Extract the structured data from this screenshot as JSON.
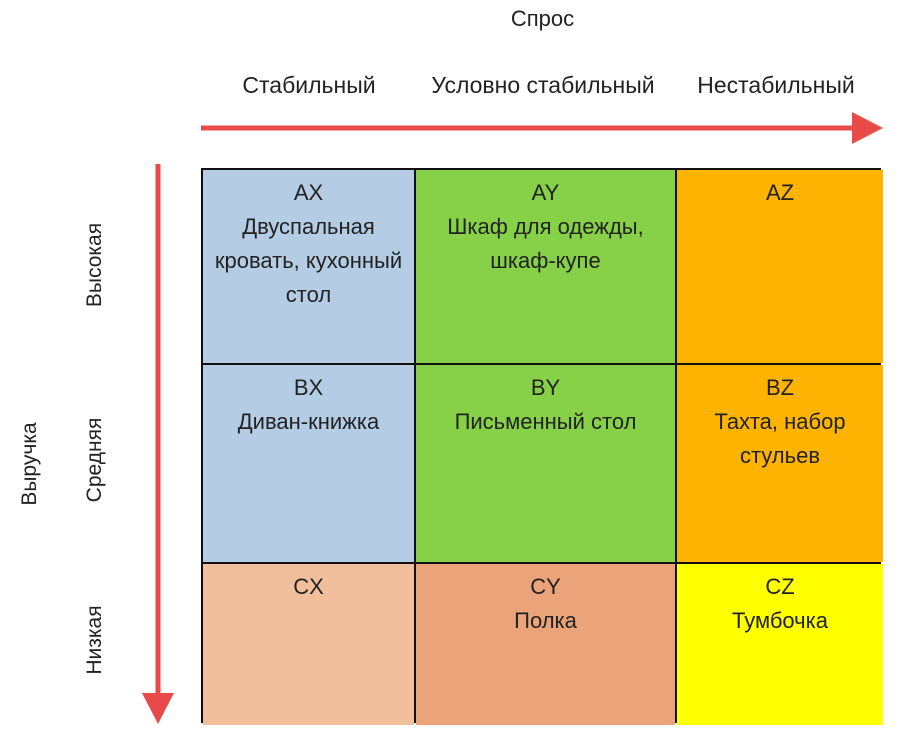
{
  "demand_title": "Спрос",
  "demand_levels": [
    "Стабильный",
    "Условно стабильный",
    "Нестабильный"
  ],
  "revenue_title": "Выручка",
  "revenue_levels": [
    "Высокая",
    "Средняя",
    "Низкая"
  ],
  "colors": {
    "blue": "#b4cde5",
    "green": "#86d147",
    "orange": "#fdb300",
    "peach": "#f2bf9c",
    "salmon": "#eba37a",
    "yellow": "#ffff00",
    "arrow": "#e84a4a"
  },
  "cells": {
    "ax": {
      "code": "AX",
      "items": "Двуспальная кровать, кухонный стол"
    },
    "ay": {
      "code": "AY",
      "items": "Шкаф для одежды, шкаф-купе"
    },
    "az": {
      "code": "AZ",
      "items": ""
    },
    "bx": {
      "code": "BX",
      "items": "Диван-книжка"
    },
    "by": {
      "code": "BY",
      "items": "Письменный стол"
    },
    "bz": {
      "code": "BZ",
      "items": "Тахта, набор стульев"
    },
    "cx": {
      "code": "CX",
      "items": ""
    },
    "cy": {
      "code": "CY",
      "items": "Полка"
    },
    "cz": {
      "code": "CZ",
      "items": "Тумбочка"
    }
  }
}
